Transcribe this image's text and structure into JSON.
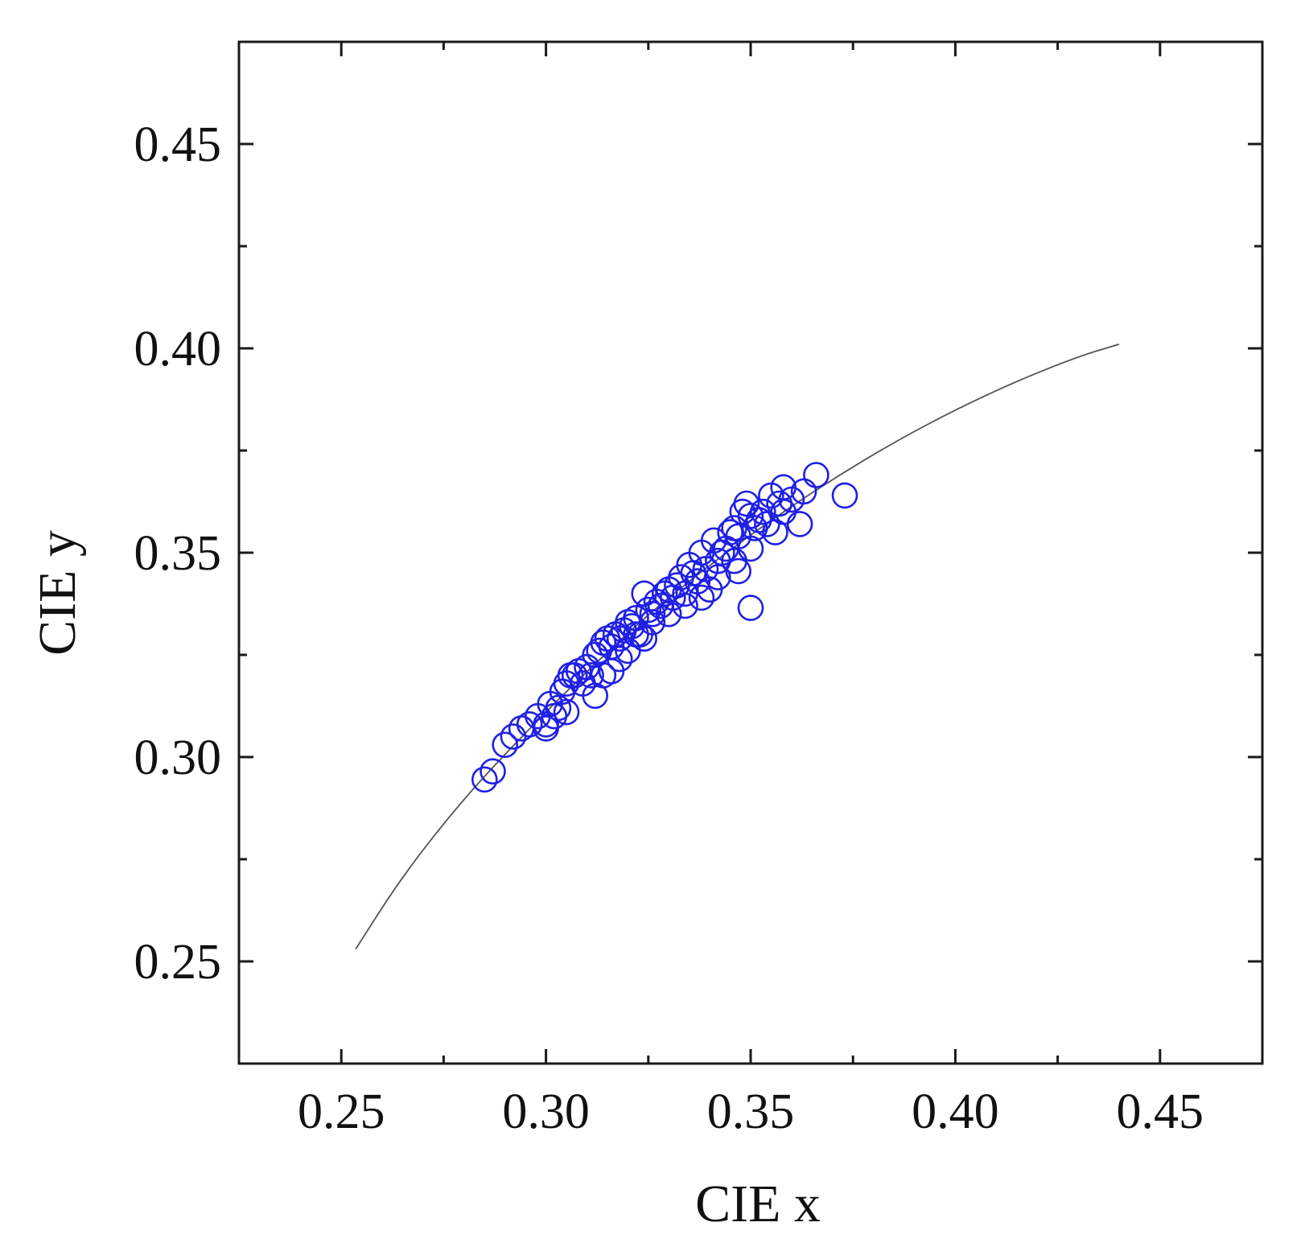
{
  "chart_data": {
    "type": "scatter",
    "title": "",
    "xlabel": "CIE x",
    "ylabel": "CIE y",
    "xlim": [
      0.225,
      0.475
    ],
    "ylim": [
      0.225,
      0.475
    ],
    "x_ticks": [
      0.25,
      0.3,
      0.35,
      0.4,
      0.45
    ],
    "y_ticks": [
      0.25,
      0.3,
      0.35,
      0.4,
      0.45
    ],
    "x_tick_labels": [
      "0.25",
      "0.30",
      "0.35",
      "0.40",
      "0.45"
    ],
    "y_tick_labels": [
      "0.25",
      "0.30",
      "0.35",
      "0.40",
      "0.45"
    ],
    "grid": false,
    "legend": "none",
    "colors": {
      "points": "#1f1fe6",
      "curve": "#555555",
      "frame": "#1a1a1a"
    },
    "curve": {
      "x": [
        0.2535,
        0.265,
        0.28,
        0.295,
        0.31,
        0.325,
        0.34,
        0.355,
        0.37,
        0.385,
        0.4,
        0.415,
        0.43,
        0.44
      ],
      "y": [
        0.253,
        0.271,
        0.29,
        0.306,
        0.321,
        0.335,
        0.347,
        0.358,
        0.368,
        0.377,
        0.385,
        0.392,
        0.398,
        0.401
      ]
    },
    "series": [
      {
        "marker": "open-circle",
        "x": [
          0.285,
          0.287,
          0.29,
          0.292,
          0.294,
          0.296,
          0.298,
          0.3,
          0.301,
          0.302,
          0.303,
          0.304,
          0.305,
          0.306,
          0.307,
          0.308,
          0.309,
          0.31,
          0.311,
          0.312,
          0.313,
          0.314,
          0.315,
          0.316,
          0.317,
          0.318,
          0.319,
          0.32,
          0.321,
          0.322,
          0.323,
          0.324,
          0.325,
          0.326,
          0.327,
          0.328,
          0.329,
          0.33,
          0.331,
          0.332,
          0.333,
          0.334,
          0.335,
          0.336,
          0.337,
          0.338,
          0.339,
          0.34,
          0.341,
          0.342,
          0.343,
          0.344,
          0.345,
          0.346,
          0.347,
          0.348,
          0.349,
          0.35,
          0.351,
          0.352,
          0.353,
          0.355,
          0.356,
          0.357,
          0.358,
          0.36,
          0.362,
          0.363,
          0.366,
          0.373,
          0.35,
          0.347,
          0.316,
          0.312,
          0.305,
          0.3,
          0.32,
          0.324,
          0.33,
          0.334,
          0.338,
          0.342,
          0.346,
          0.35,
          0.354,
          0.358,
          0.326,
          0.322,
          0.318,
          0.314
        ],
        "y": [
          0.2945,
          0.2965,
          0.303,
          0.305,
          0.307,
          0.308,
          0.31,
          0.308,
          0.313,
          0.31,
          0.312,
          0.316,
          0.318,
          0.32,
          0.32,
          0.321,
          0.318,
          0.322,
          0.32,
          0.325,
          0.326,
          0.328,
          0.329,
          0.327,
          0.33,
          0.329,
          0.331,
          0.333,
          0.332,
          0.334,
          0.33,
          0.34,
          0.336,
          0.335,
          0.338,
          0.337,
          0.34,
          0.341,
          0.339,
          0.342,
          0.344,
          0.34,
          0.347,
          0.345,
          0.343,
          0.35,
          0.346,
          0.341,
          0.353,
          0.348,
          0.35,
          0.351,
          0.355,
          0.356,
          0.354,
          0.36,
          0.362,
          0.359,
          0.356,
          0.358,
          0.36,
          0.364,
          0.355,
          0.362,
          0.366,
          0.363,
          0.357,
          0.365,
          0.369,
          0.364,
          0.3365,
          0.3455,
          0.321,
          0.315,
          0.311,
          0.307,
          0.326,
          0.329,
          0.335,
          0.337,
          0.339,
          0.344,
          0.348,
          0.351,
          0.357,
          0.36,
          0.333,
          0.33,
          0.324,
          0.32
        ]
      }
    ]
  }
}
